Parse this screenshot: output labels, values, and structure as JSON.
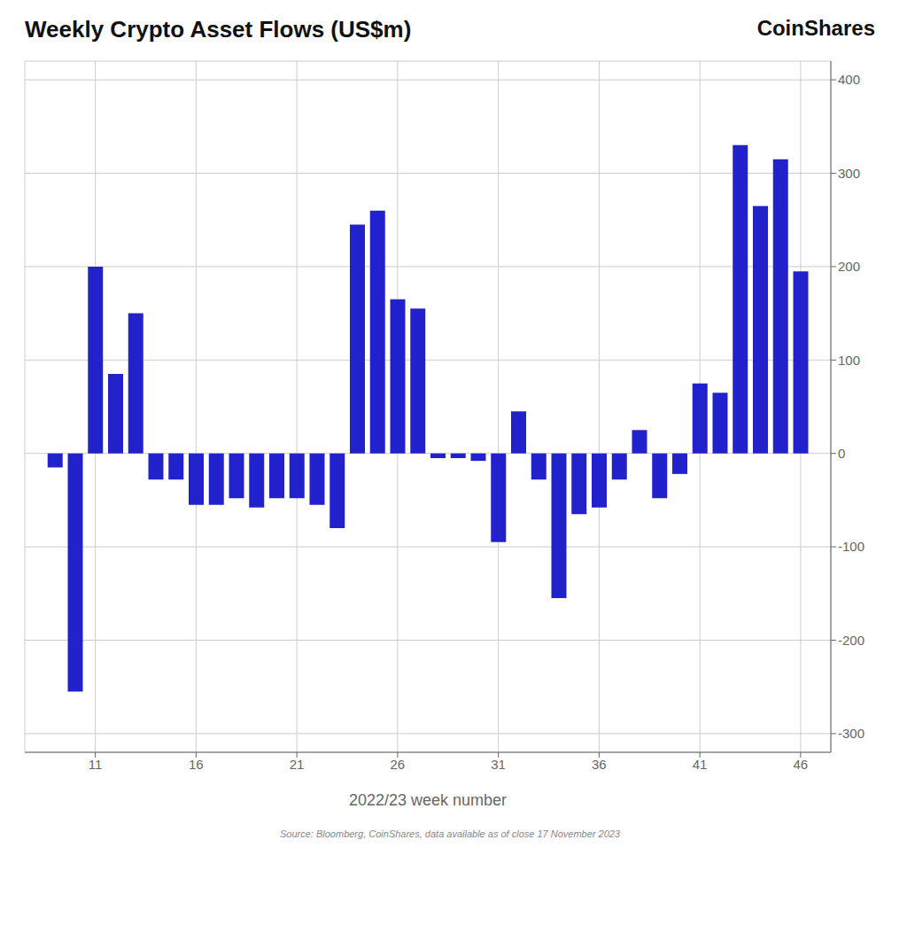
{
  "chart_data": {
    "type": "bar",
    "title": "Weekly Crypto Asset Flows (US$m)",
    "annotations": [
      "CoinShares",
      "Source: Bloomberg, CoinShares, data available as of close 17 November 2023"
    ],
    "xlabel": "2022/23 week number",
    "x": [
      9,
      10,
      11,
      12,
      13,
      14,
      15,
      16,
      17,
      18,
      19,
      20,
      21,
      22,
      23,
      24,
      25,
      26,
      27,
      28,
      29,
      30,
      31,
      32,
      33,
      34,
      35,
      36,
      37,
      38,
      39,
      40,
      41,
      42,
      43,
      44,
      45,
      46
    ],
    "values": [
      -15,
      -255,
      200,
      85,
      150,
      -28,
      -28,
      -55,
      -55,
      -48,
      -58,
      -48,
      -48,
      -55,
      -80,
      245,
      260,
      165,
      155,
      -5,
      -5,
      -8,
      -95,
      45,
      -28,
      -155,
      -65,
      -58,
      -28,
      25,
      -48,
      -22,
      75,
      65,
      330,
      265,
      315,
      195
    ],
    "color": "#2222cc",
    "xlim": [
      7.5,
      47.5
    ],
    "xticks": [
      11,
      16,
      21,
      26,
      31,
      36,
      41,
      46
    ],
    "ylim": [
      -320,
      420
    ],
    "yticks": [
      -300,
      -200,
      -100,
      0,
      100,
      200,
      300,
      400
    ],
    "grid": true
  }
}
